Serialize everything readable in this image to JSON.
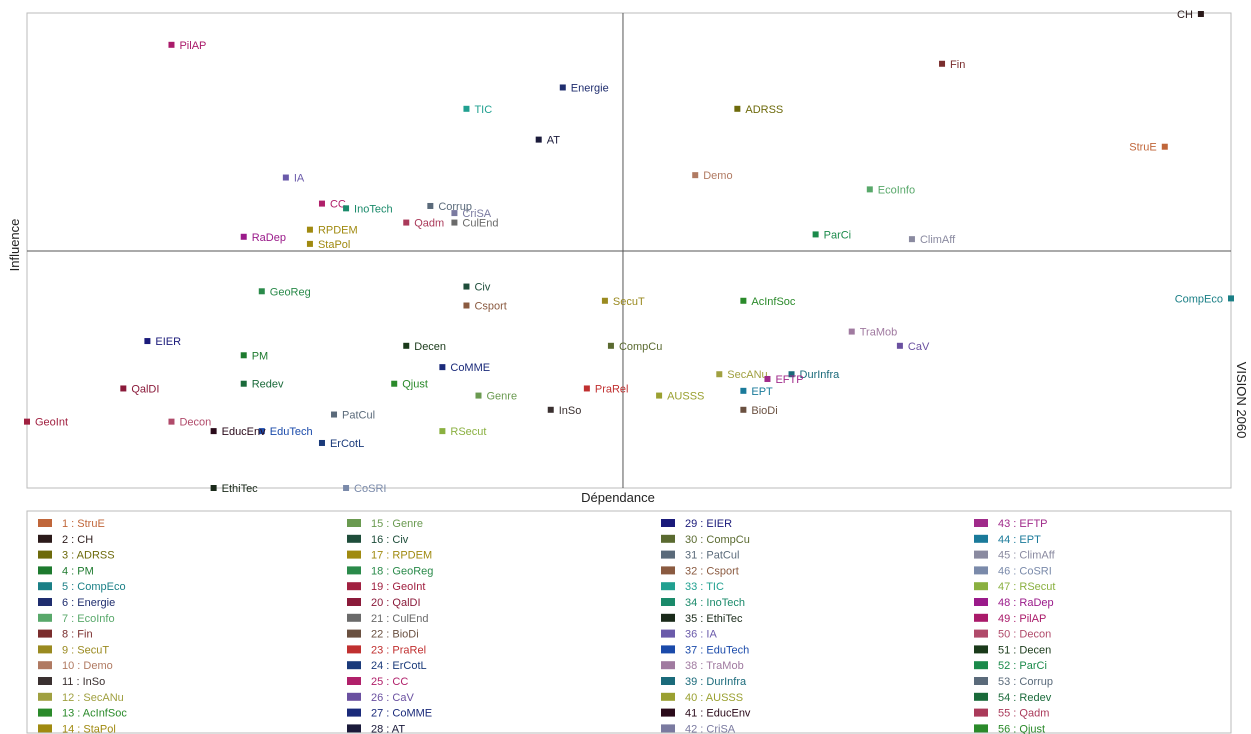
{
  "chart_data": {
    "type": "scatter",
    "title": "",
    "xlabel": "Dépendance",
    "ylabel": "Influence",
    "right_label": "VISION 2060",
    "xlim": [
      0,
      100
    ],
    "ylim": [
      0,
      100
    ],
    "x_divider": 49.5,
    "y_divider": 50,
    "grid": false,
    "legend_placement": "bottom",
    "points": [
      {
        "num": 1,
        "name": "StruE",
        "x": 94.5,
        "y": 72,
        "color": "#c0663a",
        "label_side": "left"
      },
      {
        "num": 2,
        "name": "CH",
        "x": 97.5,
        "y": 100,
        "color": "#2b1a1a",
        "label_side": "left"
      },
      {
        "num": 3,
        "name": "ADRSS",
        "x": 59,
        "y": 80,
        "color": "#6d6a0b",
        "label_side": "right"
      },
      {
        "num": 4,
        "name": "PM",
        "x": 18,
        "y": 28,
        "color": "#1d7a2e",
        "label_side": "right"
      },
      {
        "num": 5,
        "name": "CompEco",
        "x": 100,
        "y": 40,
        "color": "#1a7f86",
        "label_side": "left"
      },
      {
        "num": 6,
        "name": "Energie",
        "x": 44.5,
        "y": 84.5,
        "color": "#1f2d6e",
        "label_side": "right"
      },
      {
        "num": 7,
        "name": "EcoInfo",
        "x": 70,
        "y": 63,
        "color": "#58a86a",
        "label_side": "right"
      },
      {
        "num": 8,
        "name": "Fin",
        "x": 76,
        "y": 89.5,
        "color": "#7a2d2d",
        "label_side": "right"
      },
      {
        "num": 9,
        "name": "SecuT",
        "x": 48,
        "y": 39.5,
        "color": "#9a8a20",
        "label_side": "right"
      },
      {
        "num": 10,
        "name": "Demo",
        "x": 55.5,
        "y": 66,
        "color": "#b07a62",
        "label_side": "right"
      },
      {
        "num": 11,
        "name": "InSo",
        "x": 43.5,
        "y": 16.5,
        "color": "#3a3030",
        "label_side": "right"
      },
      {
        "num": 12,
        "name": "SecANu",
        "x": 57.5,
        "y": 24,
        "color": "#a0a040",
        "label_side": "right"
      },
      {
        "num": 13,
        "name": "AcInfSoc",
        "x": 59.5,
        "y": 39.5,
        "color": "#2a8a2a",
        "label_side": "right"
      },
      {
        "num": 14,
        "name": "StaPol",
        "x": 23.5,
        "y": 51.5,
        "color": "#a08a10",
        "label_side": "right"
      },
      {
        "num": 15,
        "name": "Genre",
        "x": 37.5,
        "y": 19.5,
        "color": "#6a9a50",
        "label_side": "right"
      },
      {
        "num": 16,
        "name": "Civ",
        "x": 36.5,
        "y": 42.5,
        "color": "#1e4d3a",
        "label_side": "right"
      },
      {
        "num": 17,
        "name": "RPDEM",
        "x": 23.5,
        "y": 54.5,
        "color": "#a08a10",
        "label_side": "right"
      },
      {
        "num": 18,
        "name": "GeoReg",
        "x": 19.5,
        "y": 41.5,
        "color": "#2a8a4a",
        "label_side": "right"
      },
      {
        "num": 19,
        "name": "GeoInt",
        "x": 0,
        "y": 14,
        "color": "#a02040",
        "label_side": "right"
      },
      {
        "num": 20,
        "name": "QalDI",
        "x": 8,
        "y": 21,
        "color": "#8a1a3a",
        "label_side": "right"
      },
      {
        "num": 21,
        "name": "CulEnd",
        "x": 35.5,
        "y": 56,
        "color": "#6a6a6a",
        "label_side": "right"
      },
      {
        "num": 22,
        "name": "BioDi",
        "x": 59.5,
        "y": 16.5,
        "color": "#6a5040",
        "label_side": "right"
      },
      {
        "num": 23,
        "name": "PraRel",
        "x": 46.5,
        "y": 21,
        "color": "#c03030",
        "label_side": "right"
      },
      {
        "num": 24,
        "name": "ErCotL",
        "x": 24.5,
        "y": 9.5,
        "color": "#1a3a7a",
        "label_side": "right"
      },
      {
        "num": 25,
        "name": "CC",
        "x": 24.5,
        "y": 60,
        "color": "#b0206a",
        "label_side": "right"
      },
      {
        "num": 26,
        "name": "CaV",
        "x": 72.5,
        "y": 30,
        "color": "#6a50a0",
        "label_side": "right"
      },
      {
        "num": 27,
        "name": "CoMME",
        "x": 34.5,
        "y": 25.5,
        "color": "#1a2a7a",
        "label_side": "right"
      },
      {
        "num": 28,
        "name": "AT",
        "x": 42.5,
        "y": 73.5,
        "color": "#1a1a3a",
        "label_side": "right"
      },
      {
        "num": 29,
        "name": "EIER",
        "x": 10,
        "y": 31,
        "color": "#1a1a7a",
        "label_side": "right"
      },
      {
        "num": 30,
        "name": "CompCu",
        "x": 48.5,
        "y": 30,
        "color": "#5a6a30",
        "label_side": "right"
      },
      {
        "num": 31,
        "name": "PatCul",
        "x": 25.5,
        "y": 15.5,
        "color": "#5a6a7a",
        "label_side": "right"
      },
      {
        "num": 32,
        "name": "Csport",
        "x": 36.5,
        "y": 38.5,
        "color": "#8a5a40",
        "label_side": "right"
      },
      {
        "num": 33,
        "name": "TIC",
        "x": 36.5,
        "y": 80,
        "color": "#20a090",
        "label_side": "right"
      },
      {
        "num": 34,
        "name": "InoTech",
        "x": 26.5,
        "y": 59,
        "color": "#1a8a6a",
        "label_side": "right"
      },
      {
        "num": 35,
        "name": "EthiTec",
        "x": 15.5,
        "y": 0,
        "color": "#1a2a1a",
        "label_side": "right"
      },
      {
        "num": 36,
        "name": "IA",
        "x": 21.5,
        "y": 65.5,
        "color": "#6a5aaa",
        "label_side": "right"
      },
      {
        "num": 37,
        "name": "EduTech",
        "x": 19.5,
        "y": 12,
        "color": "#1a4aaa",
        "label_side": "right"
      },
      {
        "num": 38,
        "name": "TraMob",
        "x": 68.5,
        "y": 33,
        "color": "#a07aa0",
        "label_side": "right"
      },
      {
        "num": 39,
        "name": "DurInfra",
        "x": 63.5,
        "y": 24,
        "color": "#1a6a7a",
        "label_side": "right"
      },
      {
        "num": 40,
        "name": "AUSSS",
        "x": 52.5,
        "y": 19.5,
        "color": "#9aa030",
        "label_side": "right"
      },
      {
        "num": 41,
        "name": "EducEnv",
        "x": 15.5,
        "y": 12,
        "color": "#2a0a1a",
        "label_side": "right"
      },
      {
        "num": 42,
        "name": "CriSA",
        "x": 35.5,
        "y": 58,
        "color": "#7a7aa0",
        "label_side": "right"
      },
      {
        "num": 43,
        "name": "EFTP",
        "x": 61.5,
        "y": 23,
        "color": "#a02a8a",
        "label_side": "right"
      },
      {
        "num": 44,
        "name": "EPT",
        "x": 59.5,
        "y": 20.5,
        "color": "#1a7a9a",
        "label_side": "right"
      },
      {
        "num": 45,
        "name": "ClimAff",
        "x": 73.5,
        "y": 52.5,
        "color": "#8a8aa0",
        "label_side": "right"
      },
      {
        "num": 46,
        "name": "CoSRI",
        "x": 26.5,
        "y": 0,
        "color": "#7a8aaa",
        "label_side": "right"
      },
      {
        "num": 47,
        "name": "RSecut",
        "x": 34.5,
        "y": 12,
        "color": "#8ab040",
        "label_side": "right"
      },
      {
        "num": 48,
        "name": "RaDep",
        "x": 18,
        "y": 53,
        "color": "#9a1a8a",
        "label_side": "right"
      },
      {
        "num": 49,
        "name": "PilAP",
        "x": 12,
        "y": 93.5,
        "color": "#aa1a6a",
        "label_side": "right"
      },
      {
        "num": 50,
        "name": "Decon",
        "x": 12,
        "y": 14,
        "color": "#b04a6a",
        "label_side": "right"
      },
      {
        "num": 51,
        "name": "Decen",
        "x": 31.5,
        "y": 30,
        "color": "#1a3a1a",
        "label_side": "right"
      },
      {
        "num": 52,
        "name": "ParCi",
        "x": 65.5,
        "y": 53.5,
        "color": "#1a8a4a",
        "label_side": "right"
      },
      {
        "num": 53,
        "name": "Corrup",
        "x": 33.5,
        "y": 59.5,
        "color": "#5a6a7a",
        "label_side": "right"
      },
      {
        "num": 54,
        "name": "Redev",
        "x": 18,
        "y": 22,
        "color": "#1a6a3a",
        "label_side": "right"
      },
      {
        "num": 55,
        "name": "Qadm",
        "x": 31.5,
        "y": 56,
        "color": "#aa3a5a",
        "label_side": "right"
      },
      {
        "num": 56,
        "name": "Qjust",
        "x": 30.5,
        "y": 22,
        "color": "#2a8a2a",
        "label_side": "right"
      }
    ]
  }
}
